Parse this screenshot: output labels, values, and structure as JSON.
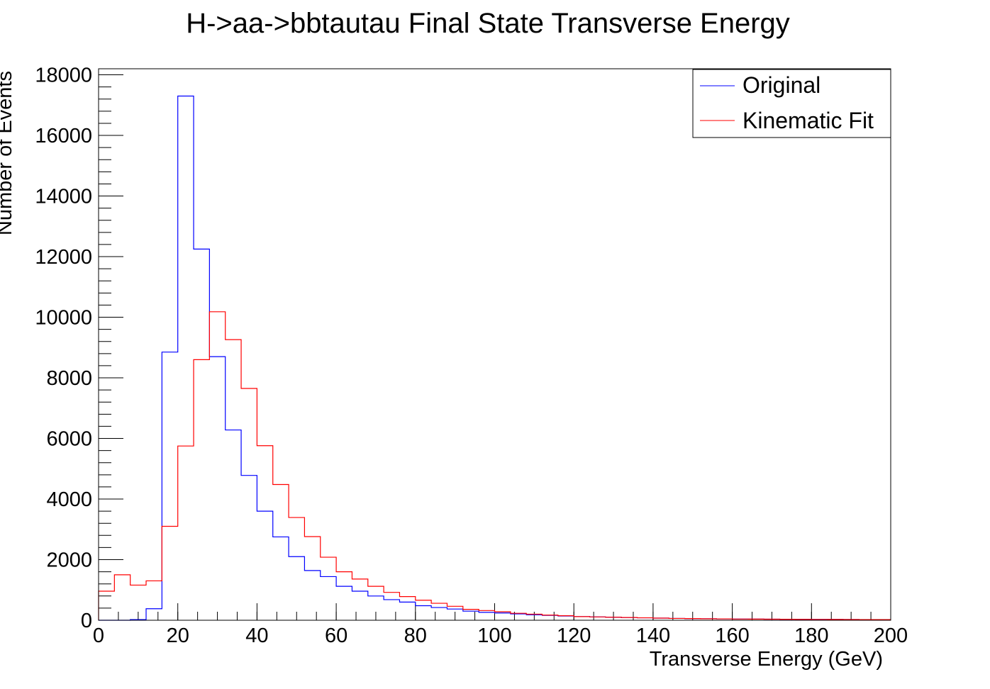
{
  "chart_data": {
    "type": "histogram-step",
    "title": "H->aa->bbtautau Final State Transverse Energy",
    "xlabel": "Transverse Energy (GeV)",
    "ylabel": "Number of Events",
    "xlim": [
      0,
      200
    ],
    "ylim": [
      0,
      18200
    ],
    "bin_width": 4,
    "x_ticks": [
      "0",
      "20",
      "40",
      "60",
      "80",
      "100",
      "120",
      "140",
      "160",
      "180",
      "200"
    ],
    "y_ticks": [
      "0",
      "2000",
      "4000",
      "6000",
      "8000",
      "10000",
      "12000",
      "14000",
      "16000",
      "18000"
    ],
    "legend_position": "top-right",
    "series": [
      {
        "name": "Original",
        "color": "#0000ff",
        "values": [
          0,
          0,
          20,
          380,
          8850,
          17300,
          12250,
          8700,
          6280,
          4780,
          3600,
          2750,
          2100,
          1640,
          1440,
          1120,
          960,
          800,
          680,
          600,
          480,
          420,
          370,
          300,
          260,
          240,
          210,
          180,
          160,
          140,
          120,
          110,
          100,
          90,
          80,
          70,
          60,
          55,
          50,
          45,
          40,
          38,
          35,
          32,
          30,
          28,
          26,
          24,
          22,
          20
        ]
      },
      {
        "name": "Kinematic Fit",
        "color": "#ff0000",
        "values": [
          960,
          1500,
          1160,
          1300,
          3100,
          5750,
          8600,
          10180,
          9260,
          7650,
          5760,
          4480,
          3390,
          2760,
          2080,
          1600,
          1360,
          1120,
          920,
          780,
          660,
          560,
          460,
          360,
          320,
          280,
          230,
          200,
          170,
          150,
          120,
          110,
          100,
          90,
          80,
          70,
          60,
          55,
          50,
          45,
          40,
          38,
          35,
          32,
          30,
          28,
          26,
          24,
          22,
          20
        ]
      }
    ]
  }
}
